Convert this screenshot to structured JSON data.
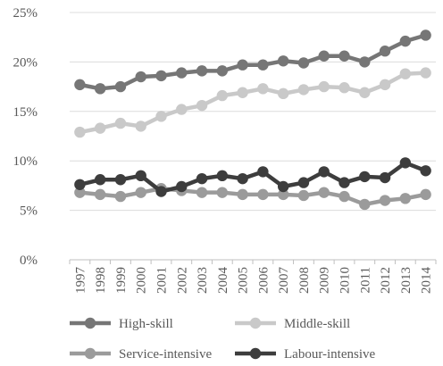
{
  "chart_data": {
    "type": "line",
    "title": "",
    "xlabel": "",
    "ylabel": "",
    "x": [
      "1997",
      "1998",
      "1999",
      "2000",
      "2001",
      "2002",
      "2003",
      "2004",
      "2005",
      "2006",
      "2007",
      "2008",
      "2009",
      "2010",
      "2011",
      "2012",
      "2013",
      "2014"
    ],
    "y_ticks": [
      "0%",
      "5%",
      "10%",
      "15%",
      "20%",
      "25%"
    ],
    "ylim": [
      0,
      25
    ],
    "grid": true,
    "legend_position": "bottom",
    "series": [
      {
        "name": "High-skill",
        "color": "#767676",
        "values": [
          17.7,
          17.3,
          17.5,
          18.5,
          18.6,
          18.9,
          19.1,
          19.1,
          19.7,
          19.7,
          20.1,
          19.9,
          20.6,
          20.6,
          20.0,
          21.1,
          22.1,
          22.7
        ]
      },
      {
        "name": "Middle-skill",
        "color": "#c9c9c9",
        "values": [
          12.9,
          13.3,
          13.8,
          13.5,
          14.5,
          15.2,
          15.6,
          16.6,
          16.9,
          17.3,
          16.8,
          17.2,
          17.5,
          17.4,
          16.9,
          17.7,
          18.8,
          18.9
        ]
      },
      {
        "name": "Service-intensive",
        "color": "#9b9b9b",
        "values": [
          6.8,
          6.6,
          6.4,
          6.8,
          7.2,
          7.0,
          6.8,
          6.8,
          6.6,
          6.6,
          6.6,
          6.5,
          6.8,
          6.4,
          5.6,
          6.0,
          6.2,
          6.6
        ]
      },
      {
        "name": "Labour-intensive",
        "color": "#3d3d3d",
        "values": [
          7.6,
          8.1,
          8.1,
          8.5,
          6.9,
          7.4,
          8.2,
          8.5,
          8.2,
          8.9,
          7.4,
          7.8,
          8.9,
          7.8,
          8.4,
          8.3,
          9.8,
          9.0
        ]
      }
    ]
  }
}
